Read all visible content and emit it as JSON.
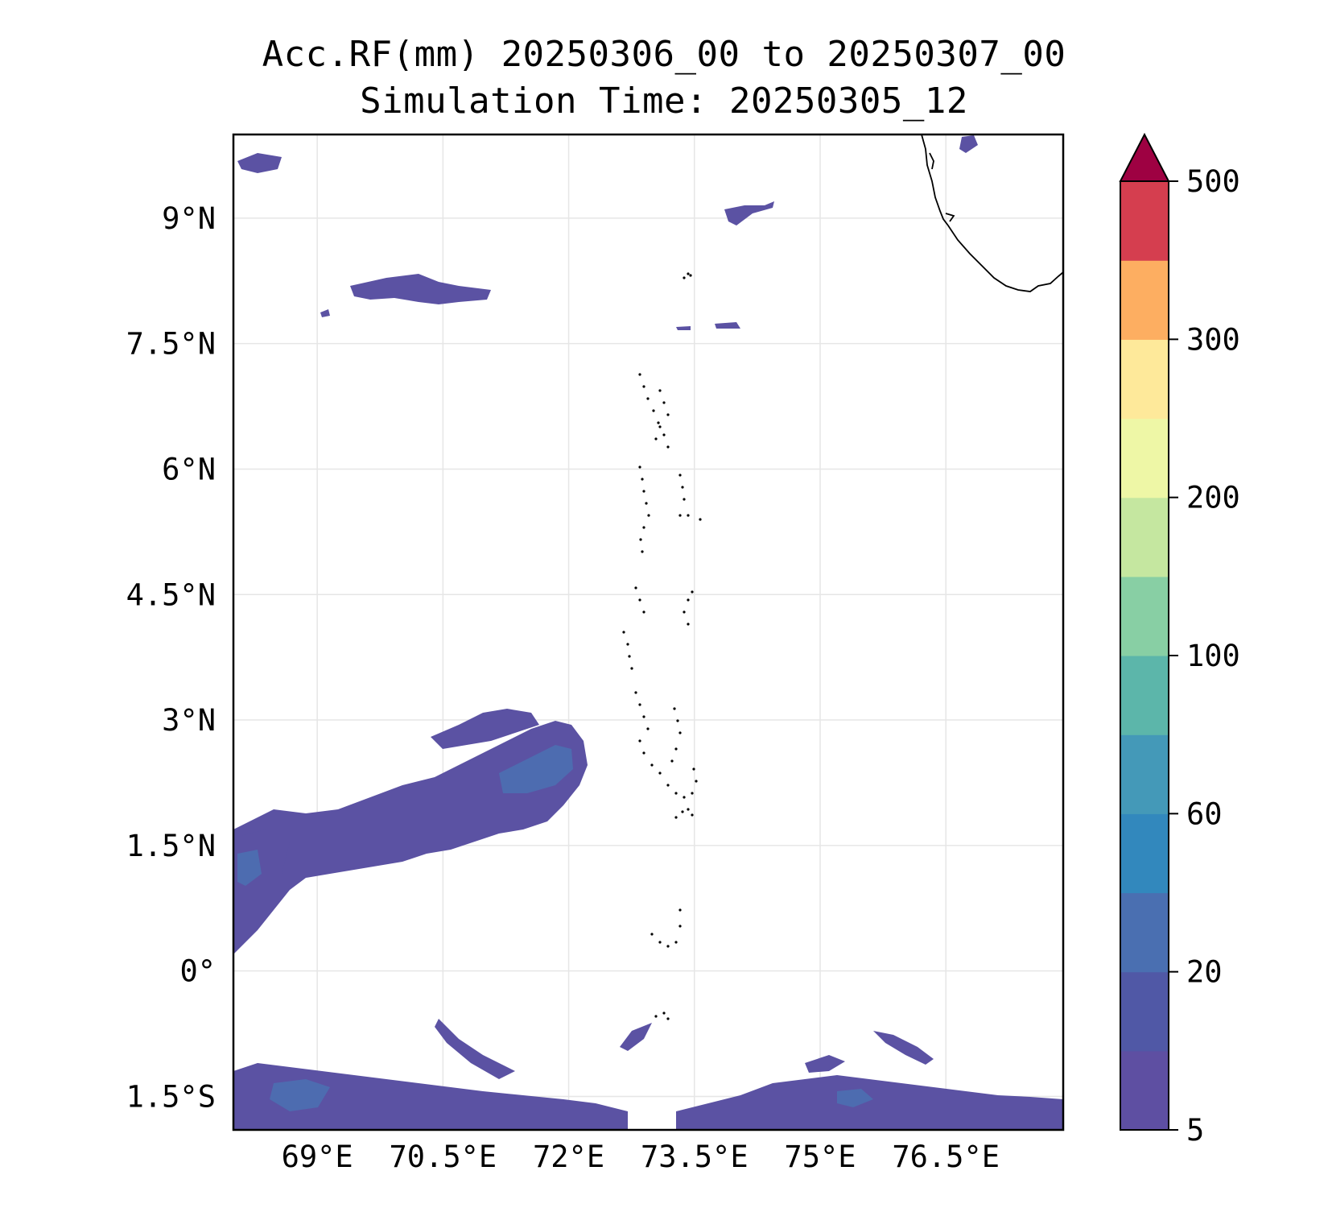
{
  "title": {
    "line1": "Acc.RF(mm) 20250306_00 to 20250307_00",
    "line2": "Simulation Time: 20250305_12"
  },
  "map": {
    "lat_ticks": [
      "9°N",
      "7.5°N",
      "6°N",
      "4.5°N",
      "3°N",
      "1.5°N",
      "0°",
      "1.5°S"
    ],
    "lon_ticks": [
      "69°E",
      "70.5°E",
      "72°E",
      "73.5°E",
      "75°E",
      "76.5°E"
    ],
    "lat_range": [
      -1.9,
      10.0
    ],
    "lon_range": [
      68.0,
      77.9
    ],
    "gridlines": true,
    "features": [
      "Maldives atolls outline",
      "southern India coastline",
      "rainfall contours"
    ]
  },
  "colorbar": {
    "levels": [
      5,
      10,
      20,
      40,
      60,
      80,
      100,
      150,
      200,
      250,
      300,
      350,
      500
    ],
    "tick_labels": [
      "5",
      "20",
      "60",
      "100",
      "200",
      "300",
      "500"
    ],
    "colors": [
      "#5e4fa2",
      "#5058a6",
      "#4a6fb1",
      "#3288bd",
      "#4499b8",
      "#5cb6aa",
      "#88cfa4",
      "#c5e7a0",
      "#eef7a6",
      "#fee99a",
      "#fdae61",
      "#d53e4f"
    ],
    "extend_color": "#9e0142",
    "extend": "max"
  }
}
